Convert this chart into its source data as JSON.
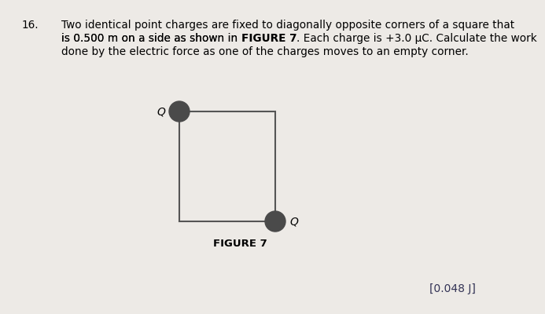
{
  "background_color": "#edeae6",
  "problem_number": "16.",
  "problem_text_line1": "Two identical point charges are fixed to diagonally opposite corners of a square that",
  "problem_text_line2_pre": "is 0.500 m on a side as shown in ",
  "problem_text_line2_bold": "FIGURE 7",
  "problem_text_line2_post": ". Each charge is +3.0 μC. Calculate the work",
  "problem_text_line3": "done by the electric force as one of the charges moves to an empty corner.",
  "figure_label": "FIGURE 7",
  "answer_text": "[0.048 J]",
  "charge_color": "#4a4a4a",
  "square_edge_color": "#555555",
  "square_linewidth": 1.5,
  "text_fontsize": 9.8,
  "Q_fontsize": 10,
  "figure_label_fontsize": 9.5,
  "answer_fontsize": 10
}
